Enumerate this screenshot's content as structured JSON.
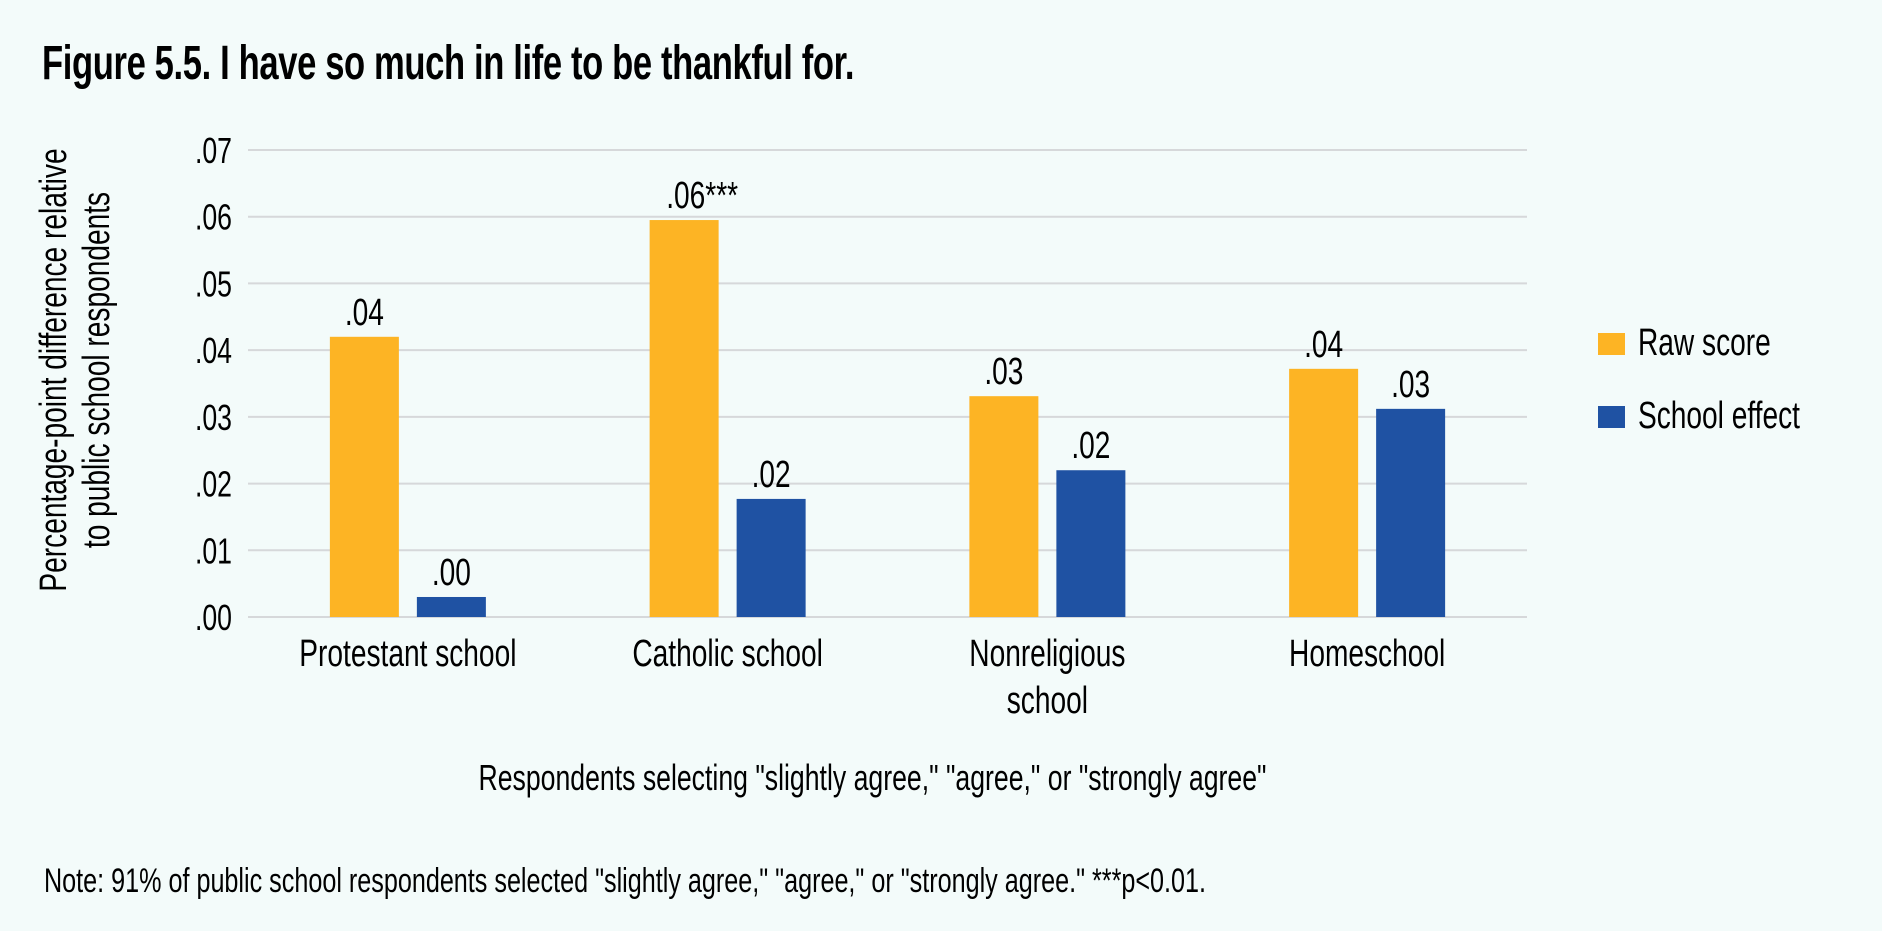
{
  "chart_data": {
    "type": "bar",
    "title": "Figure 5.5. I have so much in life to be thankful for.",
    "xlabel": "Respondents selecting \"slightly agree,\" \"agree,\" or \"strongly agree\"",
    "ylabel": [
      "Percentage-point difference relative",
      "to public school respondents"
    ],
    "ylim": [
      0,
      0.07
    ],
    "yticks": [
      0,
      0.01,
      0.02,
      0.03,
      0.04,
      0.05,
      0.06,
      0.07
    ],
    "ytick_labels": [
      ".00",
      ".01",
      ".02",
      ".03",
      ".04",
      ".05",
      ".06",
      ".07"
    ],
    "grid": true,
    "legend_position": "right",
    "categories": [
      [
        "Protestant school"
      ],
      [
        "Catholic school"
      ],
      [
        "Nonreligious",
        "school"
      ],
      [
        "Homeschool"
      ]
    ],
    "series": [
      {
        "name": "Raw score",
        "color": "#FDB424",
        "values": [
          0.042,
          0.0595,
          0.0331,
          0.0372
        ],
        "labels": [
          ".04",
          ".06***",
          ".03",
          ".04"
        ]
      },
      {
        "name": "School effect",
        "color": "#1F52A3",
        "values": [
          0.003,
          0.0177,
          0.022,
          0.0312
        ],
        "labels": [
          ".00",
          ".02",
          ".02",
          ".03"
        ]
      }
    ],
    "note": "Note: 91% of public school respondents selected \"slightly agree,\" \"agree,\" or \"strongly agree.\" ***p<0.01."
  }
}
